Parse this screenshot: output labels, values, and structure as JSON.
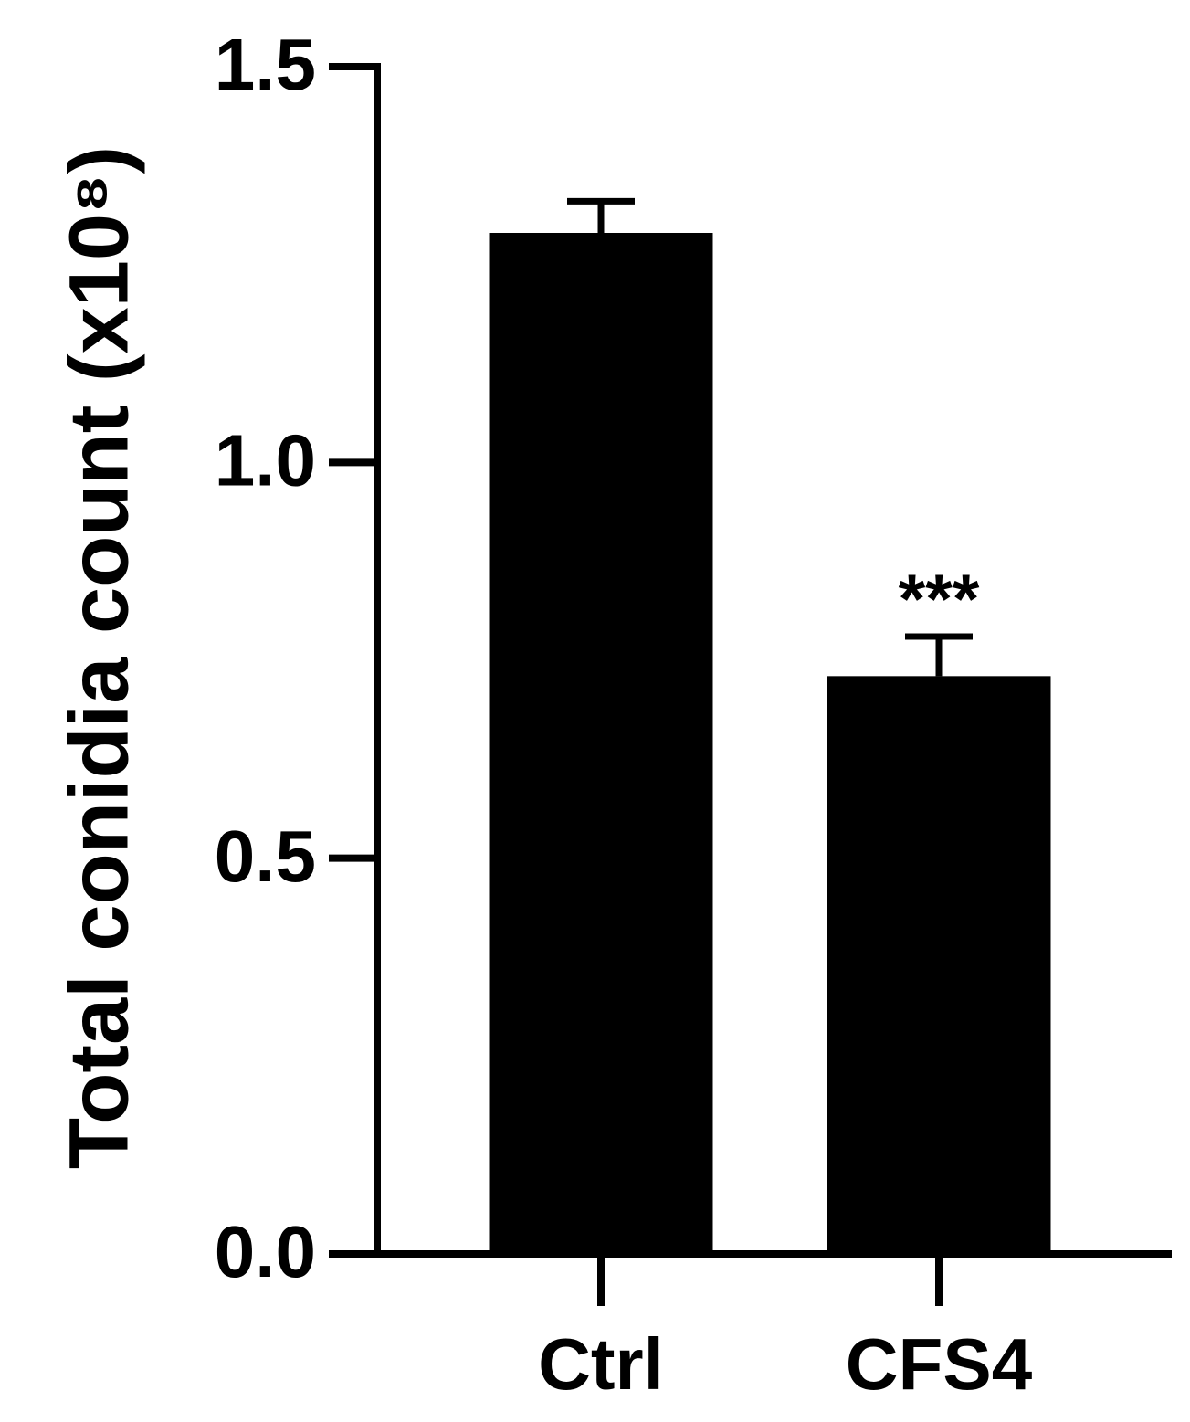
{
  "chart_data": {
    "type": "bar",
    "y_label": "Total conidia count (x10⁸)",
    "categories": [
      "Ctrl",
      "CFS4"
    ],
    "values": [
      1.29,
      0.73
    ],
    "errors": [
      0.04,
      0.05
    ],
    "color": "#000000",
    "annotations": [
      {
        "text": "***",
        "category": "CFS4"
      }
    ],
    "ylim": [
      0,
      1.5
    ],
    "yticks": [
      {
        "value": 0,
        "label": "0.0"
      },
      0.5,
      {
        "value": 1,
        "label": "1.0"
      },
      1.5
    ],
    "grid": false
  }
}
